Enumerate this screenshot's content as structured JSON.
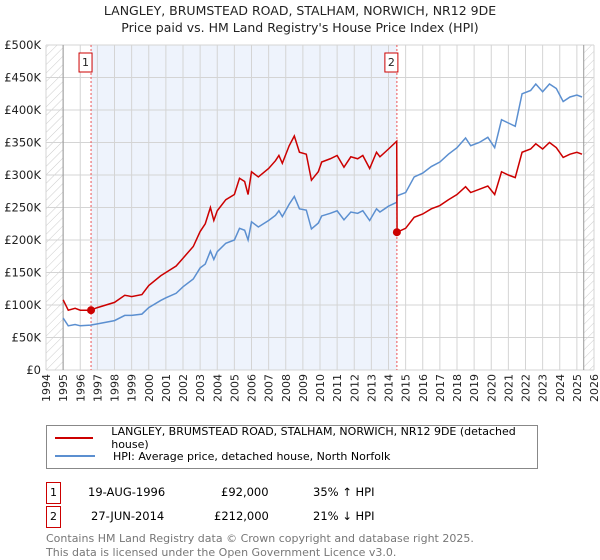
{
  "title": "LANGLEY, BRUMSTEAD ROAD, STALHAM, NORWICH, NR12 9DE",
  "subtitle": "Price paid vs. HM Land Registry's House Price Index (HPI)",
  "colors": {
    "property": "#cc0000",
    "hpi": "#5b8fd0",
    "shade": "#eef3fc"
  },
  "chart_data": {
    "type": "line",
    "title": "Price paid vs. HM Land Registry's House Price Index (HPI)",
    "xlim": [
      1994,
      2026
    ],
    "ylim": [
      0,
      500000
    ],
    "x_ticks": [
      "1994",
      "1995",
      "1996",
      "1997",
      "1998",
      "1999",
      "2000",
      "2001",
      "2002",
      "2003",
      "2004",
      "2005",
      "2006",
      "2007",
      "2008",
      "2009",
      "2010",
      "2011",
      "2012",
      "2013",
      "2014",
      "2015",
      "2016",
      "2017",
      "2018",
      "2019",
      "2020",
      "2021",
      "2022",
      "2023",
      "2024",
      "2025",
      "2026"
    ],
    "y_ticks": [
      {
        "v": 0,
        "label": "£0"
      },
      {
        "v": 50000,
        "label": "£50K"
      },
      {
        "v": 100000,
        "label": "£100K"
      },
      {
        "v": 150000,
        "label": "£150K"
      },
      {
        "v": 200000,
        "label": "£200K"
      },
      {
        "v": 250000,
        "label": "£250K"
      },
      {
        "v": 300000,
        "label": "£300K"
      },
      {
        "v": 350000,
        "label": "£350K"
      },
      {
        "v": 400000,
        "label": "£400K"
      },
      {
        "v": 450000,
        "label": "£450K"
      },
      {
        "v": 500000,
        "label": "£500K"
      }
    ],
    "data_range": [
      1995,
      2025.4
    ],
    "series": [
      {
        "name": "LANGLEY, BRUMSTEAD ROAD, STALHAM, NORWICH, NR12 9DE (detached house)",
        "color": "#cc0000",
        "points": [
          [
            1995,
            108000
          ],
          [
            1995.3,
            92000
          ],
          [
            1995.7,
            95000
          ],
          [
            1996,
            92000
          ],
          [
            1996.6,
            92000
          ],
          [
            1997,
            96000
          ],
          [
            1998,
            104000
          ],
          [
            1998.6,
            115000
          ],
          [
            1999,
            113000
          ],
          [
            1999.6,
            116000
          ],
          [
            2000,
            130000
          ],
          [
            2000.7,
            145000
          ],
          [
            2001,
            150000
          ],
          [
            2001.6,
            160000
          ],
          [
            2002,
            172000
          ],
          [
            2002.6,
            190000
          ],
          [
            2003,
            213000
          ],
          [
            2003.3,
            225000
          ],
          [
            2003.6,
            250000
          ],
          [
            2003.8,
            230000
          ],
          [
            2004,
            245000
          ],
          [
            2004.5,
            262000
          ],
          [
            2005,
            270000
          ],
          [
            2005.3,
            295000
          ],
          [
            2005.6,
            290000
          ],
          [
            2005.8,
            270000
          ],
          [
            2006,
            305000
          ],
          [
            2006.4,
            297000
          ],
          [
            2007,
            310000
          ],
          [
            2007.4,
            322000
          ],
          [
            2007.6,
            330000
          ],
          [
            2007.8,
            318000
          ],
          [
            2008.2,
            345000
          ],
          [
            2008.5,
            360000
          ],
          [
            2008.8,
            335000
          ],
          [
            2009.2,
            332000
          ],
          [
            2009.5,
            292000
          ],
          [
            2009.9,
            305000
          ],
          [
            2010.1,
            320000
          ],
          [
            2010.6,
            325000
          ],
          [
            2011,
            330000
          ],
          [
            2011.4,
            312000
          ],
          [
            2011.8,
            328000
          ],
          [
            2012.2,
            325000
          ],
          [
            2012.5,
            330000
          ],
          [
            2012.9,
            310000
          ],
          [
            2013.3,
            335000
          ],
          [
            2013.5,
            328000
          ],
          [
            2014,
            340000
          ],
          [
            2014.48,
            352000
          ],
          [
            2014.5,
            212000
          ],
          [
            2015,
            218000
          ],
          [
            2015.5,
            235000
          ],
          [
            2016,
            240000
          ],
          [
            2016.5,
            248000
          ],
          [
            2017,
            253000
          ],
          [
            2017.5,
            262000
          ],
          [
            2018,
            270000
          ],
          [
            2018.5,
            282000
          ],
          [
            2018.8,
            273000
          ],
          [
            2019.3,
            278000
          ],
          [
            2019.8,
            283000
          ],
          [
            2020.2,
            270000
          ],
          [
            2020.6,
            305000
          ],
          [
            2021,
            300000
          ],
          [
            2021.4,
            296000
          ],
          [
            2021.8,
            335000
          ],
          [
            2022.3,
            340000
          ],
          [
            2022.6,
            348000
          ],
          [
            2023,
            340000
          ],
          [
            2023.4,
            350000
          ],
          [
            2023.8,
            342000
          ],
          [
            2024.2,
            327000
          ],
          [
            2024.6,
            332000
          ],
          [
            2025,
            335000
          ],
          [
            2025.3,
            332000
          ]
        ]
      },
      {
        "name": "HPI: Average price, detached house, North Norfolk",
        "color": "#5b8fd0",
        "points": [
          [
            1995,
            80000
          ],
          [
            1995.3,
            68000
          ],
          [
            1995.7,
            70000
          ],
          [
            1996,
            68000
          ],
          [
            1996.6,
            69000
          ],
          [
            1997,
            71000
          ],
          [
            1998,
            76000
          ],
          [
            1998.6,
            84000
          ],
          [
            1999,
            84000
          ],
          [
            1999.6,
            86000
          ],
          [
            2000,
            96000
          ],
          [
            2000.7,
            107000
          ],
          [
            2001,
            111000
          ],
          [
            2001.6,
            118000
          ],
          [
            2002,
            128000
          ],
          [
            2002.6,
            140000
          ],
          [
            2003,
            157000
          ],
          [
            2003.3,
            163000
          ],
          [
            2003.6,
            183000
          ],
          [
            2003.8,
            170000
          ],
          [
            2004,
            182000
          ],
          [
            2004.5,
            195000
          ],
          [
            2005,
            200000
          ],
          [
            2005.3,
            218000
          ],
          [
            2005.6,
            215000
          ],
          [
            2005.8,
            200000
          ],
          [
            2006,
            228000
          ],
          [
            2006.4,
            220000
          ],
          [
            2007,
            230000
          ],
          [
            2007.4,
            238000
          ],
          [
            2007.6,
            245000
          ],
          [
            2007.8,
            236000
          ],
          [
            2008.2,
            255000
          ],
          [
            2008.5,
            267000
          ],
          [
            2008.8,
            248000
          ],
          [
            2009.2,
            246000
          ],
          [
            2009.5,
            217000
          ],
          [
            2009.9,
            226000
          ],
          [
            2010.1,
            237000
          ],
          [
            2010.6,
            241000
          ],
          [
            2011,
            245000
          ],
          [
            2011.4,
            231000
          ],
          [
            2011.8,
            243000
          ],
          [
            2012.2,
            241000
          ],
          [
            2012.5,
            245000
          ],
          [
            2012.9,
            230000
          ],
          [
            2013.3,
            248000
          ],
          [
            2013.5,
            243000
          ],
          [
            2014,
            252000
          ],
          [
            2014.48,
            258000
          ],
          [
            2014.5,
            268000
          ],
          [
            2015,
            273000
          ],
          [
            2015.5,
            297000
          ],
          [
            2016,
            303000
          ],
          [
            2016.5,
            313000
          ],
          [
            2017,
            320000
          ],
          [
            2017.5,
            332000
          ],
          [
            2018,
            342000
          ],
          [
            2018.5,
            357000
          ],
          [
            2018.8,
            345000
          ],
          [
            2019.3,
            350000
          ],
          [
            2019.8,
            358000
          ],
          [
            2020.2,
            342000
          ],
          [
            2020.6,
            385000
          ],
          [
            2021,
            380000
          ],
          [
            2021.4,
            375000
          ],
          [
            2021.8,
            425000
          ],
          [
            2022.3,
            430000
          ],
          [
            2022.6,
            440000
          ],
          [
            2023,
            428000
          ],
          [
            2023.4,
            440000
          ],
          [
            2023.8,
            433000
          ],
          [
            2024.2,
            413000
          ],
          [
            2024.6,
            420000
          ],
          [
            2025,
            423000
          ],
          [
            2025.3,
            420000
          ]
        ]
      }
    ],
    "sales": [
      {
        "label": "1",
        "x": 1996.63,
        "y": 92000
      },
      {
        "label": "2",
        "x": 2014.49,
        "y": 212000
      }
    ]
  },
  "legend": {
    "property": "LANGLEY, BRUMSTEAD ROAD, STALHAM, NORWICH, NR12 9DE (detached house)",
    "hpi": "HPI: Average price, detached house, North Norfolk"
  },
  "transactions": [
    {
      "num": "1",
      "date": "19-AUG-1996",
      "price": "£92,000",
      "hpi": "35% ↑ HPI"
    },
    {
      "num": "2",
      "date": "27-JUN-2014",
      "price": "£212,000",
      "hpi": "21% ↓ HPI"
    }
  ],
  "footer": [
    "Contains HM Land Registry data © Crown copyright and database right 2025.",
    "This data is licensed under the Open Government Licence v3.0."
  ]
}
